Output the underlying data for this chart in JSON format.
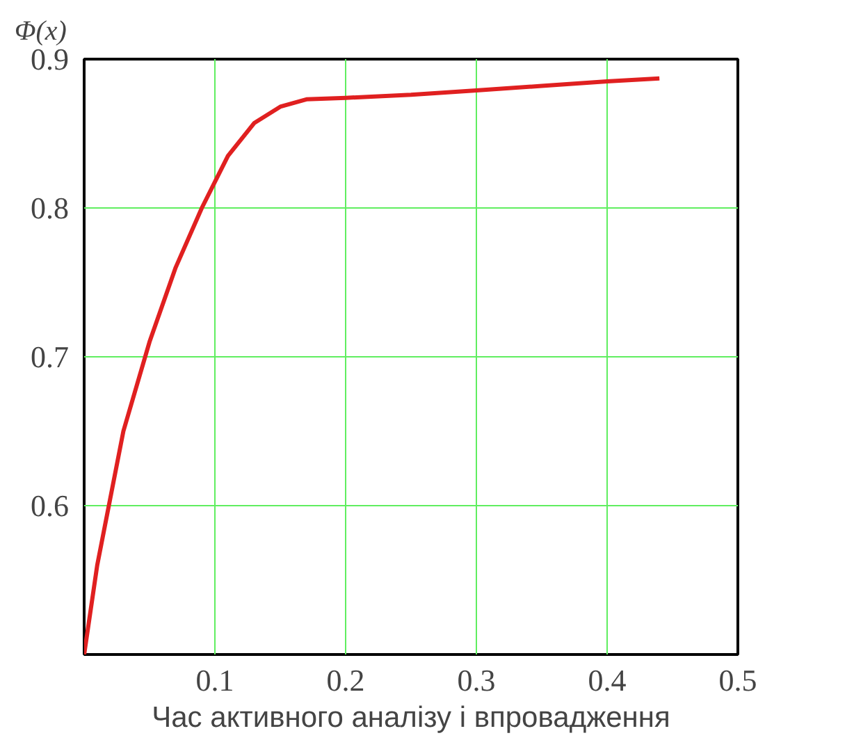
{
  "chart_data": {
    "type": "line",
    "ylabel": "Φ(x)",
    "xlabel": "Час активного аналізу і впровадження",
    "x": [
      0,
      0.01,
      0.03,
      0.05,
      0.07,
      0.09,
      0.11,
      0.13,
      0.15,
      0.17,
      0.2,
      0.25,
      0.3,
      0.35,
      0.4,
      0.44
    ],
    "series": [
      {
        "color": "#e02020",
        "values": [
          0.5,
          0.56,
          0.65,
          0.71,
          0.76,
          0.8,
          0.835,
          0.857,
          0.868,
          0.873,
          0.874,
          0.876,
          0.879,
          0.882,
          0.885,
          0.887
        ]
      }
    ],
    "xlim": [
      0,
      0.5
    ],
    "ylim": [
      0.5,
      0.9
    ],
    "xticks": [
      0.1,
      0.2,
      0.3,
      0.4,
      0.5
    ],
    "yticks": [
      0.6,
      0.7,
      0.8,
      0.9
    ],
    "grid": true,
    "marker": "none",
    "line_style": "solid"
  }
}
